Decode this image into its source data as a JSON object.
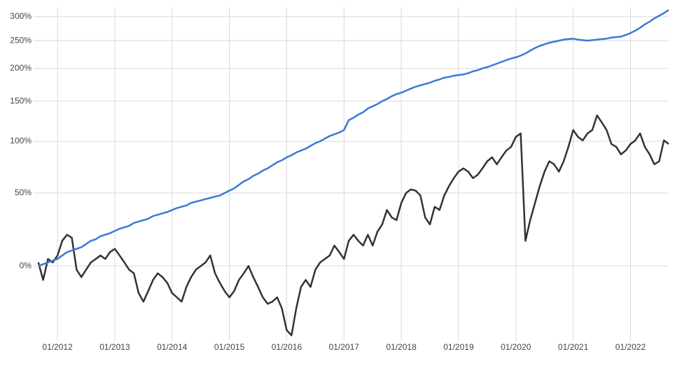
{
  "chart_data": {
    "type": "line",
    "log_scale": true,
    "grid": true,
    "x": [
      "09/2011",
      "10/2011",
      "11/2011",
      "12/2011",
      "01/2012",
      "02/2012",
      "03/2012",
      "04/2012",
      "05/2012",
      "06/2012",
      "07/2012",
      "08/2012",
      "09/2012",
      "10/2012",
      "11/2012",
      "12/2012",
      "01/2013",
      "02/2013",
      "03/2013",
      "04/2013",
      "05/2013",
      "06/2013",
      "07/2013",
      "08/2013",
      "09/2013",
      "10/2013",
      "11/2013",
      "12/2013",
      "01/2014",
      "02/2014",
      "03/2014",
      "04/2014",
      "05/2014",
      "06/2014",
      "07/2014",
      "08/2014",
      "09/2014",
      "10/2014",
      "11/2014",
      "12/2014",
      "01/2015",
      "02/2015",
      "03/2015",
      "04/2015",
      "05/2015",
      "06/2015",
      "07/2015",
      "08/2015",
      "09/2015",
      "10/2015",
      "11/2015",
      "12/2015",
      "01/2016",
      "02/2016",
      "03/2016",
      "04/2016",
      "05/2016",
      "06/2016",
      "07/2016",
      "08/2016",
      "09/2016",
      "10/2016",
      "11/2016",
      "12/2016",
      "01/2017",
      "02/2017",
      "03/2017",
      "04/2017",
      "05/2017",
      "06/2017",
      "07/2017",
      "08/2017",
      "09/2017",
      "10/2017",
      "11/2017",
      "12/2017",
      "01/2018",
      "02/2018",
      "03/2018",
      "04/2018",
      "05/2018",
      "06/2018",
      "07/2018",
      "08/2018",
      "09/2018",
      "10/2018",
      "11/2018",
      "12/2018",
      "01/2019",
      "02/2019",
      "03/2019",
      "04/2019",
      "05/2019",
      "06/2019",
      "07/2019",
      "08/2019",
      "09/2019",
      "10/2019",
      "11/2019",
      "12/2019",
      "01/2020",
      "02/2020",
      "03/2020",
      "04/2020",
      "05/2020",
      "06/2020",
      "07/2020",
      "08/2020",
      "09/2020",
      "10/2020",
      "11/2020",
      "12/2020",
      "01/2021",
      "02/2021",
      "03/2021",
      "04/2021",
      "05/2021",
      "06/2021",
      "07/2021",
      "08/2021",
      "09/2021",
      "10/2021",
      "11/2021",
      "12/2021",
      "01/2022",
      "02/2022",
      "03/2022",
      "04/2022",
      "05/2022",
      "06/2022",
      "07/2022",
      "08/2022",
      "09/2022"
    ],
    "series": [
      {
        "color": "#3c78d8",
        "values": [
          0,
          1,
          2,
          3,
          4,
          6,
          8,
          9,
          10,
          11,
          13,
          15,
          16,
          18,
          19,
          20,
          21.5,
          23,
          24,
          25,
          27,
          28,
          29,
          30,
          32,
          33,
          34,
          35,
          36.5,
          38,
          39,
          40,
          42,
          43,
          44,
          45,
          46,
          47,
          48,
          50,
          52,
          54,
          57,
          60,
          62,
          65,
          67,
          70,
          72,
          75,
          78,
          80,
          83,
          85,
          88,
          90,
          92,
          95,
          98,
          100,
          103,
          106,
          108,
          110,
          113,
          125,
          128,
          132,
          135,
          140,
          143,
          146,
          150,
          153,
          157,
          160,
          162,
          165,
          168,
          171,
          173,
          175,
          177,
          180,
          182,
          185,
          186,
          188,
          189,
          190,
          192,
          195,
          197,
          200,
          202,
          205,
          208,
          211,
          214,
          217,
          219,
          222,
          226,
          231,
          236,
          240,
          243,
          246,
          248,
          250,
          252,
          253,
          254,
          252,
          251,
          250,
          251,
          252,
          253,
          254,
          256,
          257,
          258,
          261,
          265,
          270,
          276,
          283,
          289,
          296,
          302,
          308,
          315
        ]
      },
      {
        "color": "#333333",
        "values": [
          2,
          -7.5,
          4,
          2,
          6,
          15,
          19,
          17,
          -2,
          -6,
          -2,
          2,
          4,
          6,
          4,
          8,
          10,
          6,
          2,
          -2,
          -4,
          -14,
          -18,
          -13,
          -7.5,
          -4,
          -6,
          -9,
          -14,
          -16,
          -18,
          -11,
          -6,
          -2,
          0,
          2,
          6,
          -4,
          -9,
          -13,
          -16,
          -13,
          -7.5,
          -4,
          0,
          -6,
          -11,
          -16,
          -19,
          -18,
          -16,
          -21,
          -30,
          -32,
          -21,
          -11,
          -7.5,
          -11,
          -2,
          2,
          4,
          6,
          12,
          8,
          4,
          15,
          19,
          15,
          12,
          19,
          12,
          21,
          26,
          36.5,
          31,
          29,
          42,
          50,
          53,
          52,
          48,
          31,
          26,
          39,
          36.5,
          48,
          56,
          63,
          69,
          72,
          69,
          63,
          66,
          72,
          79,
          83,
          76,
          83,
          90,
          94,
          105,
          109,
          15,
          29,
          42,
          56,
          69,
          79,
          76,
          69,
          79,
          94,
          113,
          105,
          101,
          109,
          113,
          131,
          122,
          113,
          97,
          94,
          86,
          90,
          97,
          101,
          109,
          94,
          86,
          76,
          79,
          101,
          97
        ]
      }
    ],
    "xlim": [
      "08/2011",
      "09/2022"
    ],
    "xticks": [
      "01/2012",
      "01/2013",
      "01/2014",
      "01/2015",
      "01/2016",
      "01/2017",
      "01/2018",
      "01/2019",
      "01/2020",
      "01/2021",
      "01/2022"
    ],
    "ylim": [
      -34,
      322
    ],
    "yticks": [
      {
        "value": 0,
        "label": "0%"
      },
      {
        "value": 50,
        "label": "50%"
      },
      {
        "value": 100,
        "label": "100%"
      },
      {
        "value": 150,
        "label": "150%"
      },
      {
        "value": 200,
        "label": "200%"
      },
      {
        "value": 250,
        "label": "250%"
      },
      {
        "value": 300,
        "label": "300%"
      }
    ]
  }
}
